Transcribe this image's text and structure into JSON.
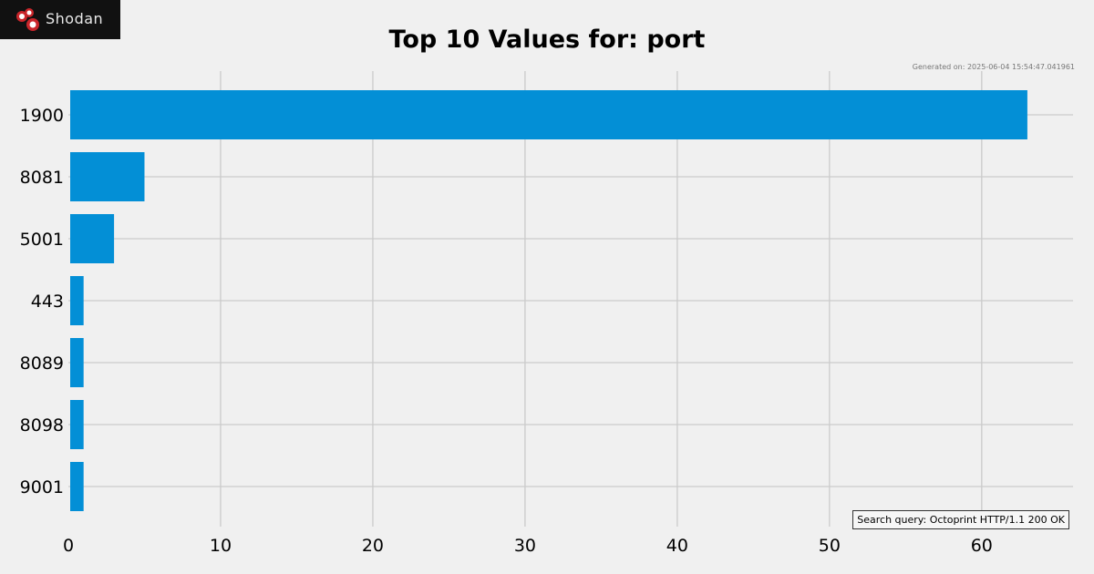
{
  "brand": {
    "name": "Shodan"
  },
  "generated": "Generated on: 2025-06-04 15:54:47.041961",
  "query_label": "Search query: Octoprint HTTP/1.1 200 OK",
  "colors": {
    "bar": "#038fd6",
    "grid": "#cbcbcb",
    "background": "#f0f0f0"
  },
  "chart_data": {
    "type": "bar",
    "orientation": "horizontal",
    "title": "Top 10 Values for: port",
    "categories": [
      "1900",
      "8081",
      "5001",
      "443",
      "8089",
      "8098",
      "9001"
    ],
    "values": [
      63,
      5,
      3,
      1,
      1,
      1,
      1
    ],
    "xlim": [
      0,
      66
    ],
    "xticks": [
      0,
      10,
      20,
      30,
      40,
      50,
      60
    ],
    "grid": true
  }
}
